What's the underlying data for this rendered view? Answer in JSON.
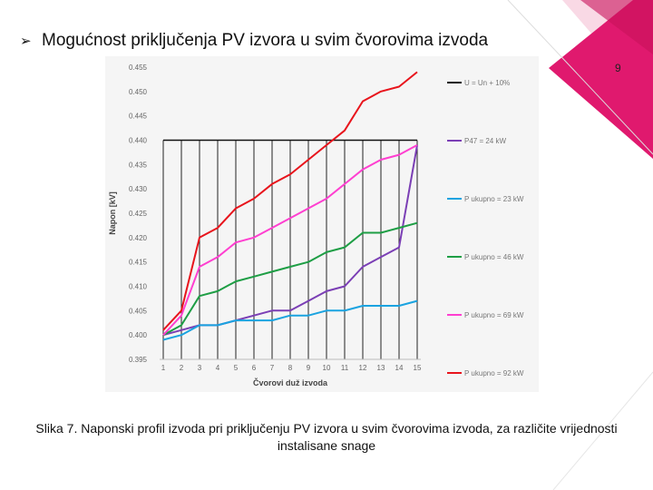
{
  "slide": {
    "title": "Mogućnost priključenja PV izvora u svim čvorovima izvoda",
    "page_number": "9",
    "caption": "Slika 7. Naponski profil izvoda pri priključenju PV izvora u svim čvorovima izvoda, za različite vrijednosti instalisane snage",
    "accent_color": "#e0196e",
    "bullet_icon": "arrow-bullet-icon"
  },
  "chart_data": {
    "type": "line",
    "xlabel": "Čvorovi duž izvoda",
    "ylabel": "Napon [kV]",
    "categories": [
      "1",
      "2",
      "3",
      "4",
      "5",
      "6",
      "7",
      "8",
      "9",
      "10",
      "11",
      "12",
      "13",
      "14",
      "15"
    ],
    "y_ticks": [
      "0.395",
      "0.400",
      "0.405",
      "0.410",
      "0.415",
      "0.420",
      "0.425",
      "0.430",
      "0.435",
      "0.440",
      "0.445",
      "0.450",
      "0.455"
    ],
    "ylim": [
      0.395,
      0.455
    ],
    "grid": "vertical lines at nodes",
    "legend_position": "right",
    "series": [
      {
        "name": "U = Un + 10%",
        "color": "#111111",
        "values": [
          0.44,
          0.44,
          0.44,
          0.44,
          0.44,
          0.44,
          0.44,
          0.44,
          0.44,
          0.44,
          0.44,
          0.44,
          0.44,
          0.44,
          0.44
        ]
      },
      {
        "name": "P47 = 24 kW",
        "color": "#7b3fb5",
        "values": [
          0.4,
          0.401,
          0.402,
          0.402,
          0.403,
          0.404,
          0.405,
          0.405,
          0.407,
          0.409,
          0.41,
          0.414,
          0.416,
          0.418,
          0.439
        ]
      },
      {
        "name": "P ukupno = 23 kW",
        "color": "#1aa3e0",
        "values": [
          0.399,
          0.4,
          0.402,
          0.402,
          0.403,
          0.403,
          0.403,
          0.404,
          0.404,
          0.405,
          0.405,
          0.406,
          0.406,
          0.406,
          0.407
        ]
      },
      {
        "name": "P ukupno = 46 kW",
        "color": "#1e9e45",
        "values": [
          0.4,
          0.402,
          0.408,
          0.409,
          0.411,
          0.412,
          0.413,
          0.414,
          0.415,
          0.417,
          0.418,
          0.421,
          0.421,
          0.422,
          0.423
        ]
      },
      {
        "name": "P ukupno = 69 kW",
        "color": "#ff3fd0",
        "values": [
          0.4,
          0.404,
          0.414,
          0.416,
          0.419,
          0.42,
          0.422,
          0.424,
          0.426,
          0.428,
          0.431,
          0.434,
          0.436,
          0.437,
          0.439
        ]
      },
      {
        "name": "P ukupno = 92 kW",
        "color": "#e8141c",
        "values": [
          0.401,
          0.405,
          0.42,
          0.422,
          0.426,
          0.428,
          0.431,
          0.433,
          0.436,
          0.439,
          0.442,
          0.448,
          0.45,
          0.451,
          0.454
        ]
      }
    ]
  }
}
